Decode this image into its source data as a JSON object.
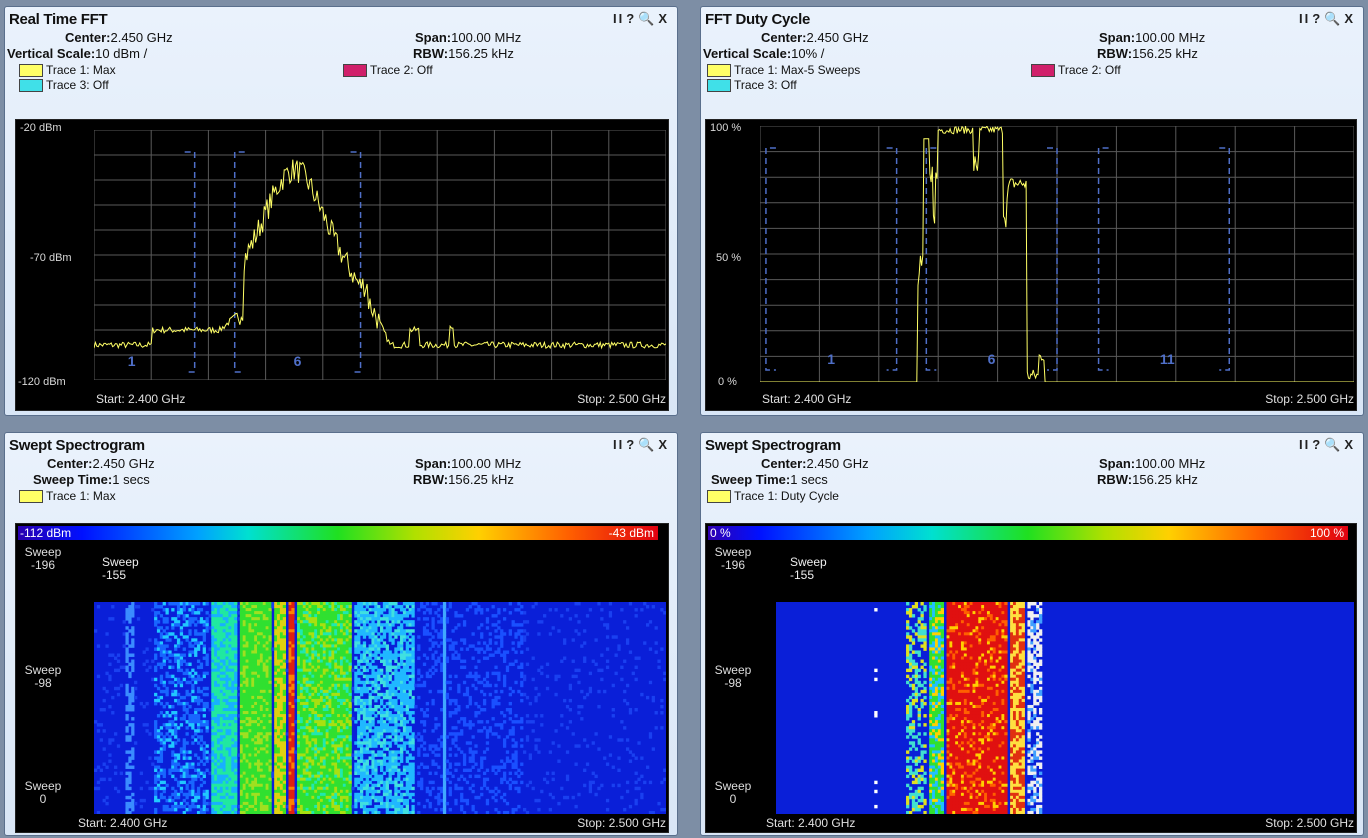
{
  "controls": {
    "pause": "II",
    "help": "?",
    "zoom": "🔍",
    "close": "X"
  },
  "tl": {
    "title": "Real Time FFT",
    "center_label": "Center:",
    "center_value": "2.450 GHz",
    "span_label": "Span:",
    "span_value": "100.00 MHz",
    "vscale_label": "Vertical Scale:",
    "vscale_value": "10 dBm /",
    "rbw_label": "RBW:",
    "rbw_value": "156.25 kHz",
    "trace1": "Trace 1: Max",
    "trace2": "Trace 2: Off",
    "trace3": "Trace 3: Off",
    "y_top": "-20 dBm",
    "y_mid": "-70 dBm",
    "y_bot": "-120 dBm",
    "start": "Start: 2.400 GHz",
    "stop": "Stop: 2.500 GHz",
    "channels": [
      "1",
      "6"
    ]
  },
  "tr": {
    "title": "FFT Duty Cycle",
    "center_label": "Center:",
    "center_value": "2.450 GHz",
    "span_label": "Span:",
    "span_value": "100.00 MHz",
    "vscale_label": "Vertical Scale:",
    "vscale_value": "10% /",
    "rbw_label": "RBW:",
    "rbw_value": "156.25 kHz",
    "trace1": "Trace 1: Max-5 Sweeps",
    "trace2": "Trace 2: Off",
    "trace3": "Trace 3: Off",
    "y_top": "100 %",
    "y_mid": "50 %",
    "y_bot": "0 %",
    "start": "Start: 2.400 GHz",
    "stop": "Stop: 2.500 GHz",
    "channels": [
      "1",
      "6",
      "11"
    ]
  },
  "bl": {
    "title": "Swept Spectrogram",
    "center_label": "Center:",
    "center_value": "2.450 GHz",
    "span_label": "Span:",
    "span_value": "100.00 MHz",
    "sweep_label": "Sweep Time:",
    "sweep_value": "1 secs",
    "rbw_label": "RBW:",
    "rbw_value": "156.25 kHz",
    "trace1": "Trace 1: Max",
    "scale_lo": "-112 dBm",
    "scale_hi": "-43 dBm",
    "sweep_top": "Sweep\n-196",
    "sweep_mid": "Sweep\n-98",
    "sweep_bot": "Sweep\n0",
    "sweep_cur": "Sweep\n-155",
    "start": "Start: 2.400 GHz",
    "stop": "Stop: 2.500 GHz"
  },
  "br": {
    "title": "Swept Spectrogram",
    "center_label": "Center:",
    "center_value": "2.450 GHz",
    "span_label": "Span:",
    "span_value": "100.00 MHz",
    "sweep_label": "Sweep Time:",
    "sweep_value": "1 secs",
    "rbw_label": "RBW:",
    "rbw_value": "156.25 kHz",
    "trace1": "Trace 1: Duty Cycle",
    "scale_lo": "0 %",
    "scale_hi": "100 %",
    "sweep_top": "Sweep\n-196",
    "sweep_mid": "Sweep\n-98",
    "sweep_bot": "Sweep\n0",
    "sweep_cur": "Sweep\n-155",
    "start": "Start: 2.400 GHz",
    "stop": "Stop: 2.500 GHz"
  },
  "colors": {
    "trace1": "#ffff66",
    "trace2": "#d0206a",
    "trace3": "#40e0e8",
    "grid": "#5a5a5a",
    "channel": "#4f6fc8"
  }
}
